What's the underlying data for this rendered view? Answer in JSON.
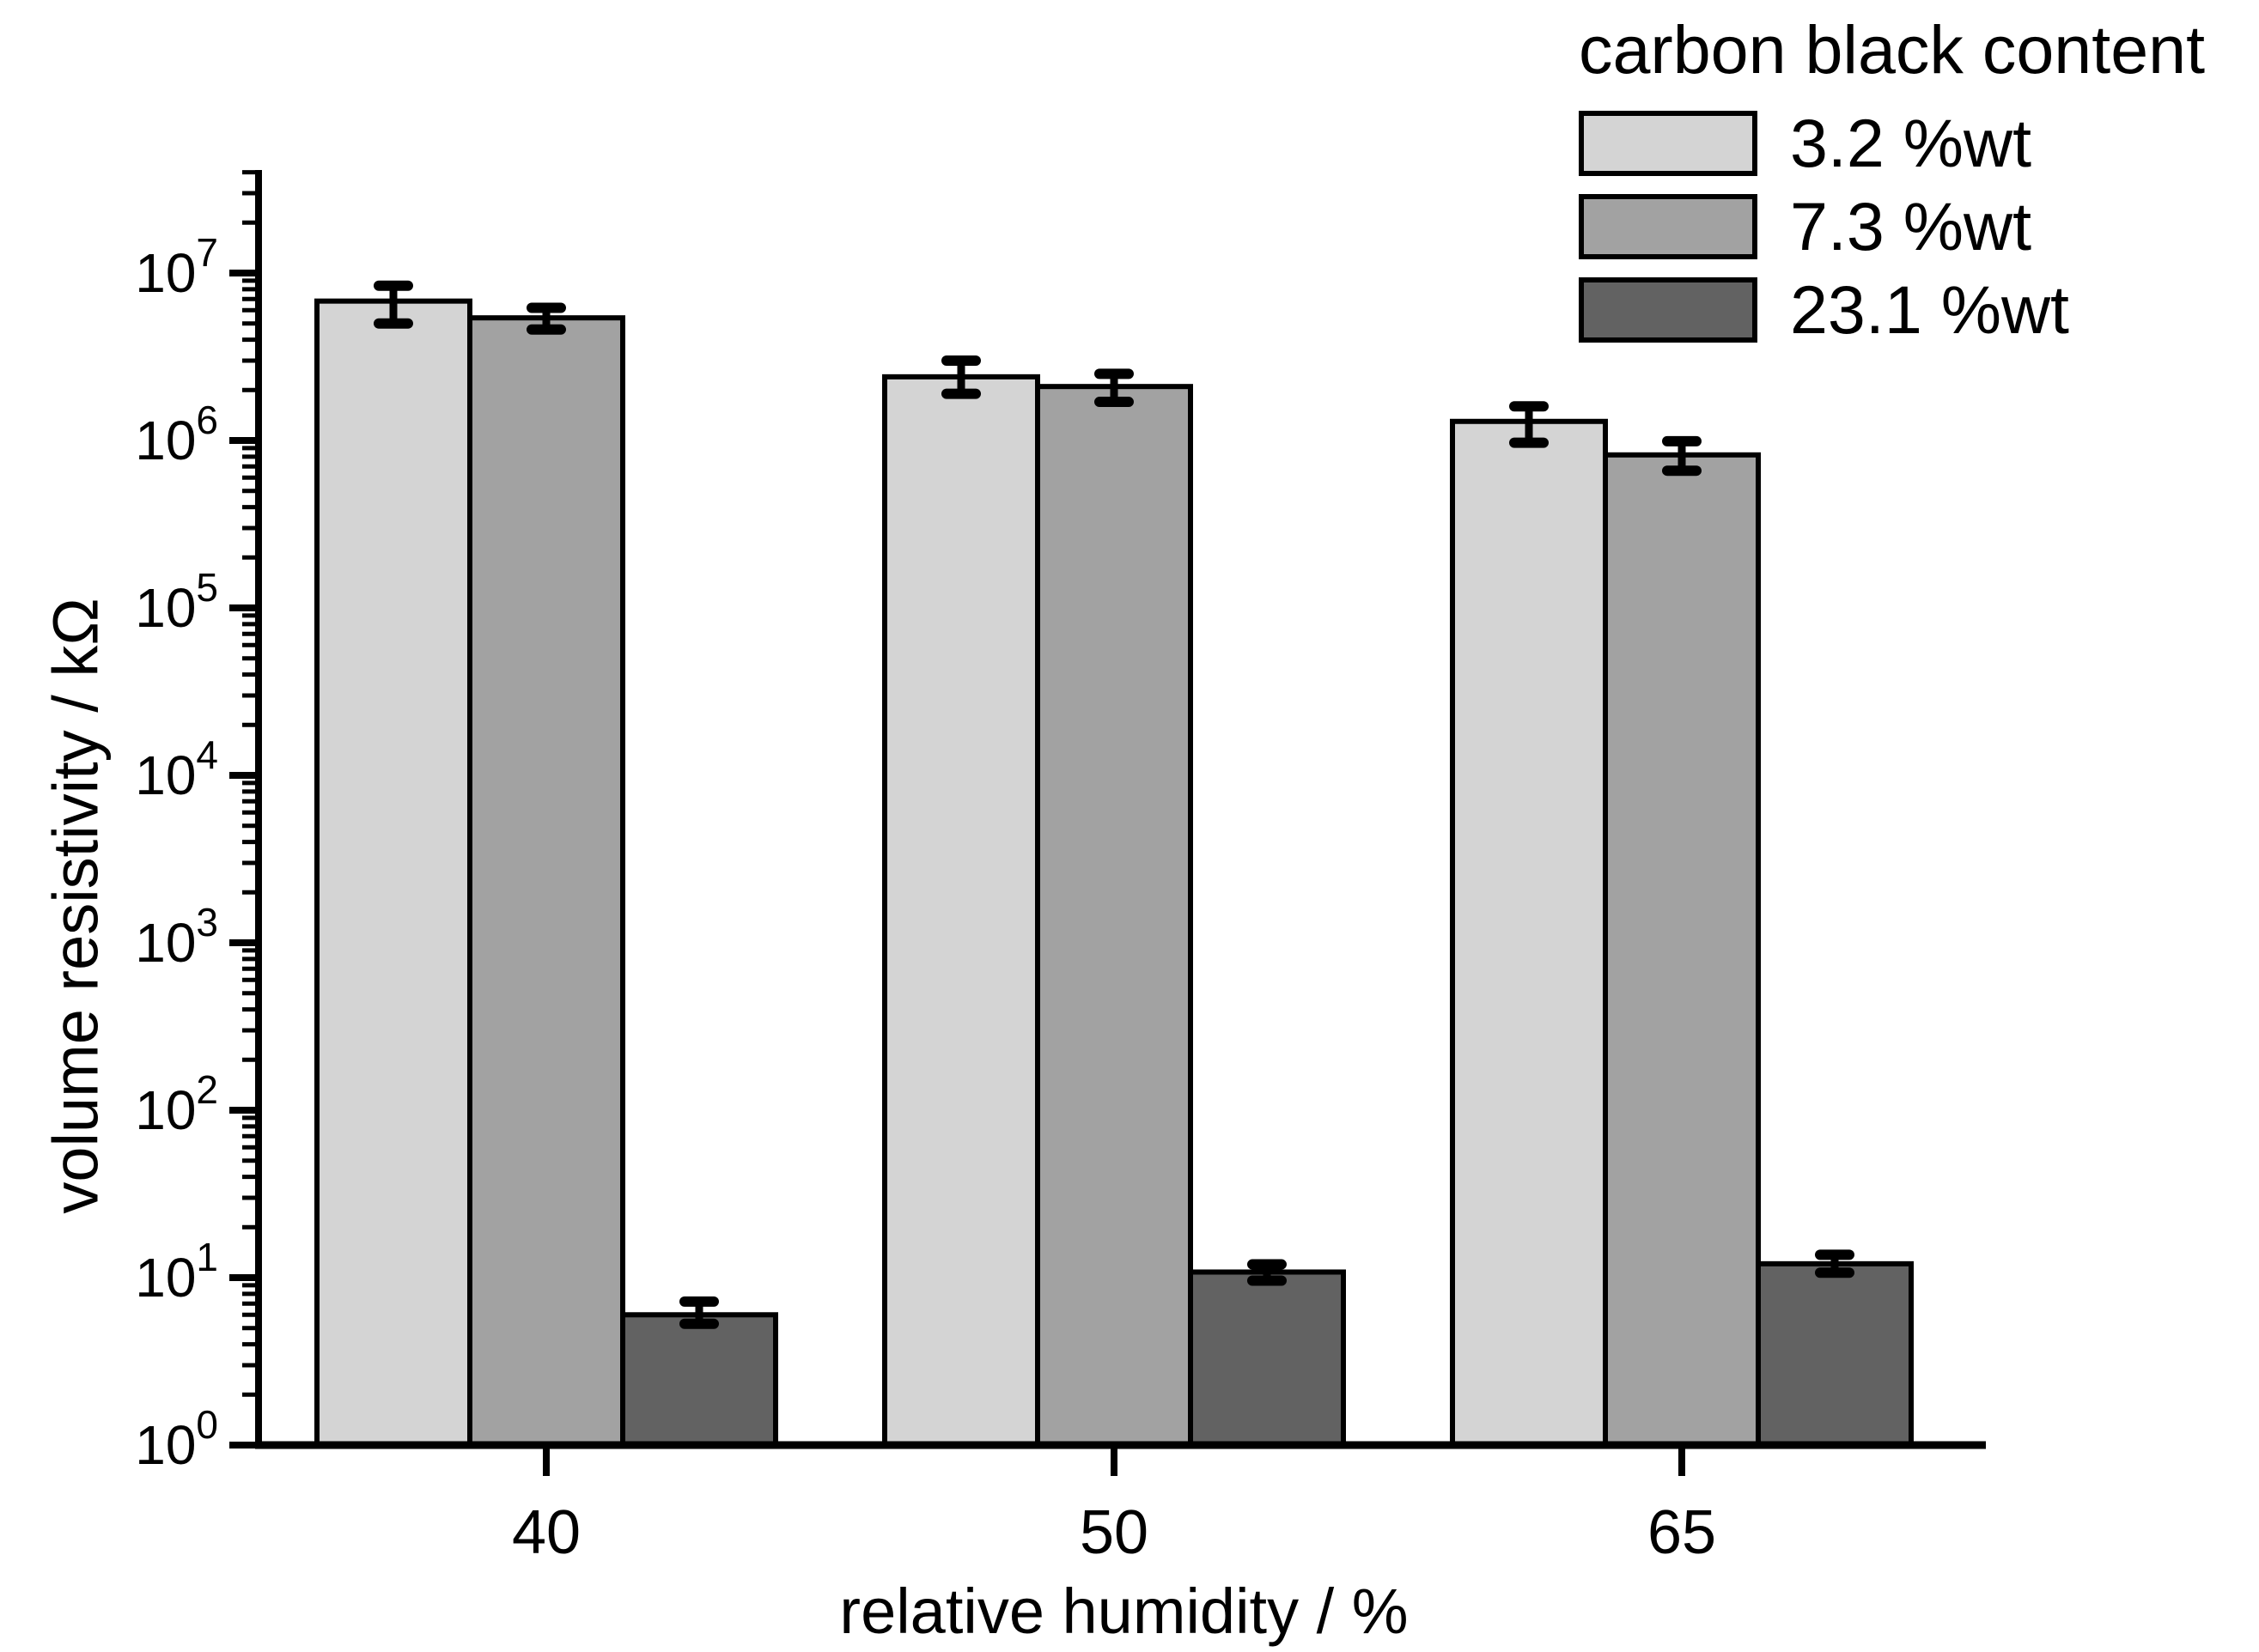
{
  "chart_data": {
    "type": "bar",
    "legend_title": "carbon black content",
    "legend_position": "top-right",
    "xlabel": "relative humidity / %",
    "ylabel": "volume resistivity / kΩ",
    "y_scale": "log",
    "ylim": [
      1,
      40000000
    ],
    "y_tick_exponents": [
      0,
      1,
      2,
      3,
      4,
      5,
      6,
      7
    ],
    "grid": false,
    "background": "#ffffff",
    "axis_color": "#000000",
    "categories": [
      "40",
      "50",
      "65"
    ],
    "series": [
      {
        "name": "3.2 %wt",
        "color": "#d4d4d4",
        "values": [
          6800000,
          2400000,
          1300000
        ],
        "error_low": [
          5000000,
          1900000,
          970000
        ],
        "error_high": [
          8400000,
          3000000,
          1600000
        ]
      },
      {
        "name": "7.3 %wt",
        "color": "#a2a2a2",
        "values": [
          5400000,
          2100000,
          820000
        ],
        "error_low": [
          4600000,
          1700000,
          660000
        ],
        "error_high": [
          6200000,
          2500000,
          990000
        ]
      },
      {
        "name": "23.1 %wt",
        "color": "#626262",
        "values": [
          6.0,
          10.8,
          12.1
        ],
        "error_low": [
          5.3,
          9.6,
          10.7
        ],
        "error_high": [
          7.2,
          12.0,
          13.7
        ]
      }
    ]
  }
}
